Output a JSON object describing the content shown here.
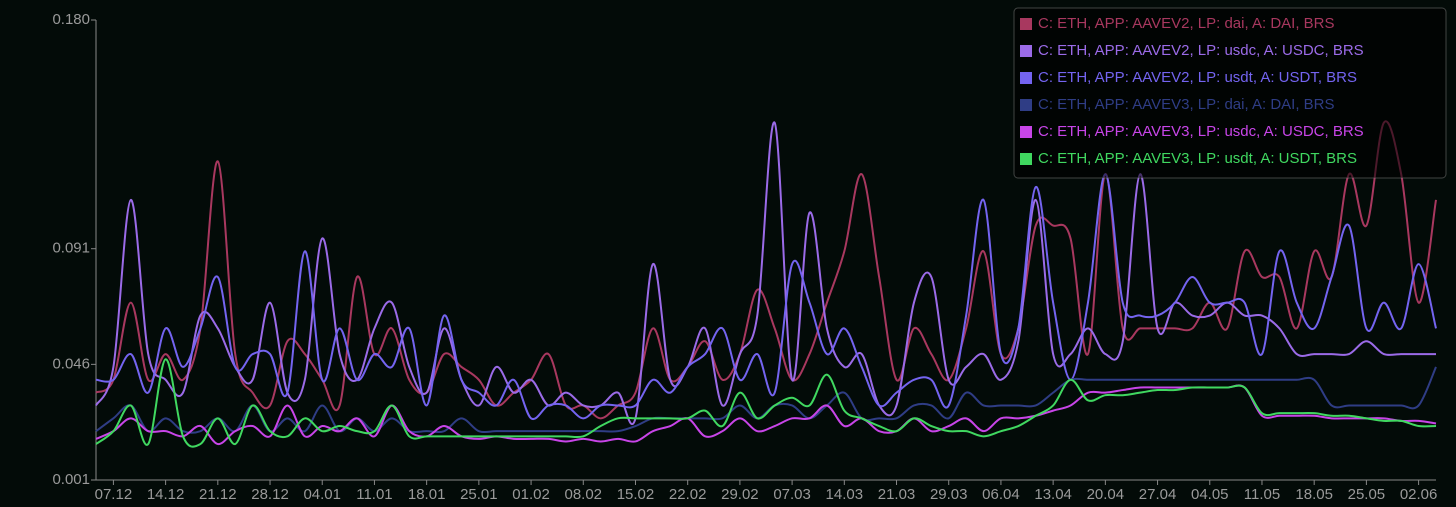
{
  "chart_data": {
    "type": "line",
    "categories": [
      null,
      "07.12",
      null,
      null,
      "14.12",
      null,
      null,
      "21.12",
      null,
      null,
      "28.12",
      null,
      null,
      "04.01",
      null,
      null,
      "11.01",
      null,
      null,
      "18.01",
      null,
      null,
      "25.01",
      null,
      null,
      "01.02",
      null,
      null,
      "08.02",
      null,
      null,
      "15.02",
      null,
      null,
      "22.02",
      null,
      null,
      "29.02",
      null,
      null,
      "07.03",
      null,
      null,
      "14.03",
      null,
      null,
      "21.03",
      null,
      null,
      "29.03",
      null,
      null,
      "06.04",
      null,
      null,
      "13.04",
      null,
      null,
      "20.04",
      null,
      null,
      "27.04",
      null,
      null,
      "04.05",
      null,
      null,
      "11.05",
      null,
      null,
      "18.05",
      null,
      null,
      "25.05",
      null,
      null,
      "02.06",
      null
    ],
    "ylim": [
      0.001,
      0.18
    ],
    "yticks": [
      0.001,
      0.046,
      0.091,
      {
        "value": 0.18,
        "label": "0.180"
      }
    ],
    "legend": "top-right",
    "series": [
      {
        "name": "C: ETH, APP: AAVEV2, LP: dai, A: DAI, BRS",
        "color": "#a8385f",
        "values": [
          0.035,
          0.04,
          0.07,
          0.04,
          0.05,
          0.04,
          0.06,
          0.125,
          0.05,
          0.035,
          0.03,
          0.055,
          0.05,
          0.04,
          0.03,
          0.08,
          0.05,
          0.06,
          0.04,
          0.035,
          0.05,
          0.045,
          0.04,
          0.03,
          0.035,
          0.04,
          0.05,
          0.03,
          0.03,
          0.025,
          0.03,
          0.035,
          0.06,
          0.04,
          0.045,
          0.055,
          0.04,
          0.05,
          0.075,
          0.06,
          0.04,
          0.05,
          0.07,
          0.09,
          0.12,
          0.08,
          0.04,
          0.06,
          0.05,
          0.04,
          0.06,
          0.09,
          0.05,
          0.06,
          0.1,
          0.1,
          0.095,
          0.05,
          0.12,
          0.06,
          0.06,
          0.06,
          0.06,
          0.06,
          0.07,
          0.06,
          0.09,
          0.08,
          0.08,
          0.06,
          0.09,
          0.08,
          0.12,
          0.1,
          0.14,
          0.12,
          0.07,
          0.11
        ]
      },
      {
        "name": "C: ETH, APP: AAVEV2, LP: usdc, A: USDC, BRS",
        "color": "#9b6be8",
        "values": [
          0.03,
          0.045,
          0.11,
          0.05,
          0.04,
          0.035,
          0.065,
          0.06,
          0.045,
          0.04,
          0.07,
          0.035,
          0.04,
          0.095,
          0.05,
          0.04,
          0.06,
          0.07,
          0.045,
          0.035,
          0.06,
          0.04,
          0.03,
          0.045,
          0.035,
          0.04,
          0.03,
          0.035,
          0.03,
          0.03,
          0.035,
          0.025,
          0.085,
          0.04,
          0.045,
          0.06,
          0.03,
          0.05,
          0.065,
          0.14,
          0.04,
          0.105,
          0.06,
          0.045,
          0.05,
          0.03,
          0.03,
          0.07,
          0.08,
          0.04,
          0.045,
          0.05,
          0.04,
          0.055,
          0.11,
          0.05,
          0.05,
          0.06,
          0.05,
          0.055,
          0.12,
          0.06,
          0.07,
          0.065,
          0.065,
          0.07,
          0.065,
          0.065,
          0.06,
          0.05,
          0.05,
          0.05,
          0.05,
          0.055,
          0.05,
          0.05,
          0.05,
          0.05
        ]
      },
      {
        "name": "C: ETH, APP: AAVEV2, LP: usdt, A: USDT, BRS",
        "color": "#7464f0",
        "values": [
          0.04,
          0.04,
          0.05,
          0.035,
          0.06,
          0.045,
          0.06,
          0.08,
          0.045,
          0.05,
          0.05,
          0.035,
          0.09,
          0.04,
          0.06,
          0.04,
          0.05,
          0.045,
          0.06,
          0.03,
          0.065,
          0.04,
          0.035,
          0.03,
          0.04,
          0.025,
          0.03,
          0.03,
          0.025,
          0.03,
          0.03,
          0.03,
          0.04,
          0.035,
          0.045,
          0.05,
          0.06,
          0.04,
          0.05,
          0.035,
          0.085,
          0.07,
          0.05,
          0.06,
          0.045,
          0.03,
          0.035,
          0.04,
          0.04,
          0.03,
          0.065,
          0.11,
          0.05,
          0.06,
          0.115,
          0.07,
          0.04,
          0.07,
          0.12,
          0.07,
          0.065,
          0.065,
          0.07,
          0.08,
          0.07,
          0.07,
          0.07,
          0.05,
          0.09,
          0.07,
          0.06,
          0.08,
          0.1,
          0.06,
          0.07,
          0.06,
          0.085,
          0.06
        ]
      },
      {
        "name": "C: ETH, APP: AAVEV3, LP: dai, A: DAI, BRS",
        "color": "#2f3d85",
        "values": [
          0.02,
          0.025,
          0.03,
          0.02,
          0.025,
          0.02,
          0.02,
          0.025,
          0.02,
          0.03,
          0.02,
          0.025,
          0.02,
          0.03,
          0.02,
          0.025,
          0.02,
          0.025,
          0.02,
          0.02,
          0.02,
          0.025,
          0.02,
          0.02,
          0.02,
          0.02,
          0.02,
          0.02,
          0.02,
          0.02,
          0.02,
          0.022,
          0.025,
          0.025,
          0.025,
          0.025,
          0.025,
          0.03,
          0.025,
          0.03,
          0.03,
          0.025,
          0.03,
          0.035,
          0.025,
          0.025,
          0.025,
          0.03,
          0.03,
          0.025,
          0.035,
          0.03,
          0.03,
          0.03,
          0.03,
          0.035,
          0.04,
          0.04,
          0.04,
          0.04,
          0.04,
          0.04,
          0.04,
          0.04,
          0.04,
          0.04,
          0.04,
          0.04,
          0.04,
          0.04,
          0.04,
          0.03,
          0.03,
          0.03,
          0.03,
          0.03,
          0.03,
          0.045
        ]
      },
      {
        "name": "C: ETH, APP: AAVEV3, LP: usdc, A: USDC, BRS",
        "color": "#c845e8",
        "values": [
          0.017,
          0.02,
          0.025,
          0.02,
          0.02,
          0.018,
          0.022,
          0.015,
          0.02,
          0.022,
          0.018,
          0.03,
          0.018,
          0.022,
          0.02,
          0.025,
          0.018,
          0.03,
          0.02,
          0.018,
          0.022,
          0.018,
          0.017,
          0.018,
          0.017,
          0.017,
          0.017,
          0.016,
          0.017,
          0.016,
          0.017,
          0.016,
          0.02,
          0.022,
          0.025,
          0.018,
          0.02,
          0.025,
          0.02,
          0.022,
          0.025,
          0.025,
          0.03,
          0.022,
          0.025,
          0.02,
          0.02,
          0.025,
          0.02,
          0.022,
          0.025,
          0.02,
          0.025,
          0.025,
          0.026,
          0.028,
          0.03,
          0.035,
          0.035,
          0.036,
          0.037,
          0.037,
          0.037,
          0.037,
          0.037,
          0.037,
          0.037,
          0.026,
          0.026,
          0.026,
          0.026,
          0.025,
          0.025,
          0.025,
          0.025,
          0.024,
          0.024,
          0.023
        ]
      },
      {
        "name": "C: ETH, APP: AAVEV3, LP: usdt, A: USDT, BRS",
        "color": "#40d860",
        "values": [
          0.015,
          0.02,
          0.03,
          0.015,
          0.048,
          0.018,
          0.015,
          0.025,
          0.015,
          0.03,
          0.02,
          0.018,
          0.025,
          0.02,
          0.022,
          0.02,
          0.02,
          0.03,
          0.018,
          0.018,
          0.018,
          0.018,
          0.018,
          0.018,
          0.018,
          0.018,
          0.018,
          0.018,
          0.018,
          0.022,
          0.025,
          0.025,
          0.025,
          0.025,
          0.025,
          0.028,
          0.022,
          0.035,
          0.025,
          0.03,
          0.033,
          0.03,
          0.042,
          0.028,
          0.025,
          0.022,
          0.02,
          0.025,
          0.022,
          0.02,
          0.02,
          0.018,
          0.02,
          0.022,
          0.026,
          0.03,
          0.04,
          0.032,
          0.034,
          0.034,
          0.035,
          0.036,
          0.036,
          0.037,
          0.037,
          0.037,
          0.037,
          0.027,
          0.027,
          0.027,
          0.027,
          0.026,
          0.026,
          0.025,
          0.024,
          0.024,
          0.022,
          0.022
        ]
      }
    ]
  }
}
